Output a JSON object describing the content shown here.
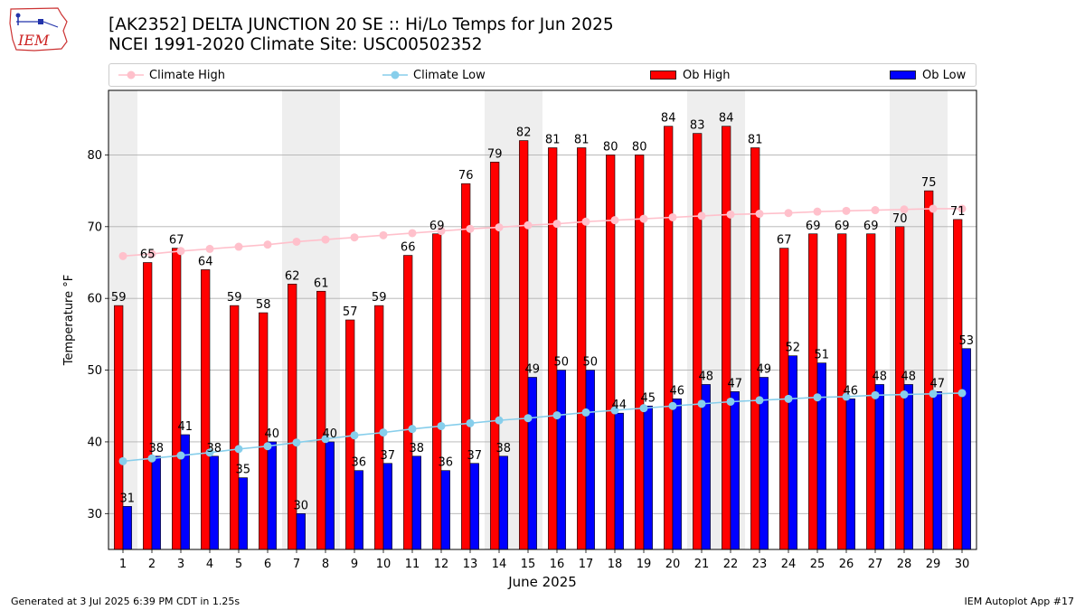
{
  "header": {
    "title_line1": "[AK2352] DELTA JUNCTION 20 SE :: Hi/Lo Temps for Jun 2025",
    "title_line2": "NCEI 1991-2020 Climate Site: USC00502352",
    "logo_text": "IEM"
  },
  "legend": {
    "climate_high": "Climate High",
    "climate_low": "Climate Low",
    "ob_high": "Ob High",
    "ob_low": "Ob Low"
  },
  "footer": {
    "generated": "Generated at 3 Jul 2025 6:39 PM CDT in 1.25s",
    "app": "IEM Autoplot App #17"
  },
  "colors": {
    "ob_high": "#ff0000",
    "ob_low": "#0000ff",
    "climate_high": "#ffc0cb",
    "climate_low": "#87ceeb",
    "weekend_shade": "#eeeeee",
    "grid": "#b0b0b0"
  },
  "chart_data": {
    "type": "bar",
    "xlabel": "June 2025",
    "ylabel": "Temperature °F",
    "ylim": [
      25,
      89
    ],
    "yticks": [
      30,
      40,
      50,
      60,
      70,
      80
    ],
    "grid": "horizontal",
    "legend_position": "top",
    "categories": [
      1,
      2,
      3,
      4,
      5,
      6,
      7,
      8,
      9,
      10,
      11,
      12,
      13,
      14,
      15,
      16,
      17,
      18,
      19,
      20,
      21,
      22,
      23,
      24,
      25,
      26,
      27,
      28,
      29,
      30
    ],
    "shaded_days": [
      1,
      7,
      8,
      14,
      15,
      21,
      22,
      28,
      29
    ],
    "series": [
      {
        "name": "Ob High",
        "kind": "bar",
        "values": [
          59,
          65,
          67,
          64,
          59,
          58,
          62,
          61,
          57,
          59,
          66,
          69,
          76,
          79,
          82,
          81,
          81,
          80,
          80,
          84,
          83,
          84,
          81,
          67,
          69,
          69,
          69,
          70,
          75,
          71
        ]
      },
      {
        "name": "Ob Low",
        "kind": "bar",
        "values": [
          31,
          38,
          41,
          38,
          35,
          40,
          30,
          40,
          36,
          37,
          38,
          36,
          37,
          38,
          49,
          50,
          50,
          44,
          45,
          46,
          48,
          47,
          49,
          52,
          51,
          46,
          48,
          48,
          47,
          53
        ]
      },
      {
        "name": "Climate High",
        "kind": "line",
        "values": [
          65.9,
          66.2,
          66.6,
          66.9,
          67.2,
          67.5,
          67.9,
          68.2,
          68.5,
          68.8,
          69.1,
          69.4,
          69.7,
          69.9,
          70.2,
          70.4,
          70.7,
          70.9,
          71.1,
          71.3,
          71.5,
          71.7,
          71.8,
          71.9,
          72.1,
          72.2,
          72.3,
          72.4,
          72.5,
          72.5
        ]
      },
      {
        "name": "Climate Low",
        "kind": "line",
        "values": [
          37.3,
          37.7,
          38.1,
          38.5,
          39.0,
          39.4,
          39.9,
          40.4,
          40.9,
          41.3,
          41.8,
          42.2,
          42.6,
          43.0,
          43.3,
          43.7,
          44.1,
          44.4,
          44.7,
          45.0,
          45.3,
          45.6,
          45.8,
          46.0,
          46.2,
          46.3,
          46.5,
          46.6,
          46.7,
          46.8
        ]
      }
    ]
  }
}
